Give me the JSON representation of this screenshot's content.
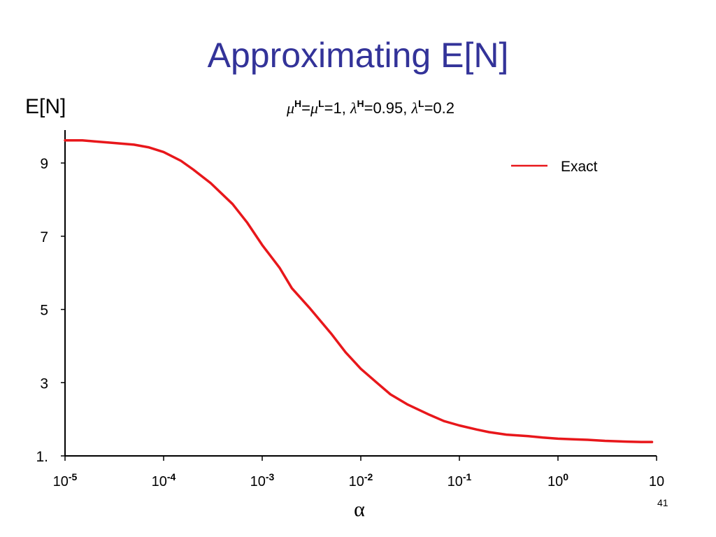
{
  "slide": {
    "title": "Approximating E[N]",
    "page_number": "41"
  },
  "chart_data": {
    "type": "line",
    "ylabel": "E[N]",
    "xlabel": "α",
    "subtitle": {
      "mu_h": "μ",
      "sup_h": "H",
      "eq1": "=",
      "mu_l": "μ",
      "sup_l": "L",
      "eq2": "=1, ",
      "lambda_h": "λ",
      "sup_h2": "H",
      "eq3": "=0.95, ",
      "lambda_l": "λ",
      "sup_l2": "L",
      "eq4": "=0.2"
    },
    "x_scale": "log",
    "xlim": [
      1e-05,
      10
    ],
    "ylim": [
      1,
      9.9
    ],
    "y_ticks": [
      {
        "value": 1,
        "label": "1."
      },
      {
        "value": 3,
        "label": "3"
      },
      {
        "value": 5,
        "label": "5"
      },
      {
        "value": 7,
        "label": "7"
      },
      {
        "value": 9,
        "label": "9"
      }
    ],
    "x_ticks": [
      {
        "value": 1e-05,
        "base": "10",
        "exp": "-5"
      },
      {
        "value": 0.0001,
        "base": "10",
        "exp": "-4"
      },
      {
        "value": 0.001,
        "base": "10",
        "exp": "-3"
      },
      {
        "value": 0.01,
        "base": "10",
        "exp": "-2"
      },
      {
        "value": 0.1,
        "base": "10",
        "exp": "-1"
      },
      {
        "value": 1,
        "base": "10",
        "exp": "0"
      },
      {
        "value": 10,
        "base": "10",
        "exp": ""
      }
    ],
    "legend_position": "top-right",
    "grid": false,
    "series": [
      {
        "name": "Exact",
        "color": "#e8171b",
        "x": [
          1e-05,
          1.5e-05,
          2e-05,
          3e-05,
          5e-05,
          7e-05,
          0.0001,
          0.00015,
          0.0002,
          0.0003,
          0.0005,
          0.0007,
          0.001,
          0.0015,
          0.002,
          0.003,
          0.005,
          0.007,
          0.01,
          0.015,
          0.02,
          0.03,
          0.05,
          0.07,
          0.1,
          0.15,
          0.2,
          0.3,
          0.5,
          0.7,
          1,
          1.5,
          2,
          3,
          5,
          7,
          9
        ],
        "y": [
          9.62,
          9.62,
          9.59,
          9.55,
          9.5,
          9.43,
          9.3,
          9.06,
          8.82,
          8.45,
          7.88,
          7.38,
          6.76,
          6.14,
          5.58,
          5.05,
          4.34,
          3.83,
          3.38,
          2.97,
          2.68,
          2.4,
          2.12,
          1.95,
          1.83,
          1.72,
          1.65,
          1.58,
          1.54,
          1.5,
          1.47,
          1.45,
          1.44,
          1.41,
          1.39,
          1.38,
          1.38
        ]
      }
    ]
  }
}
